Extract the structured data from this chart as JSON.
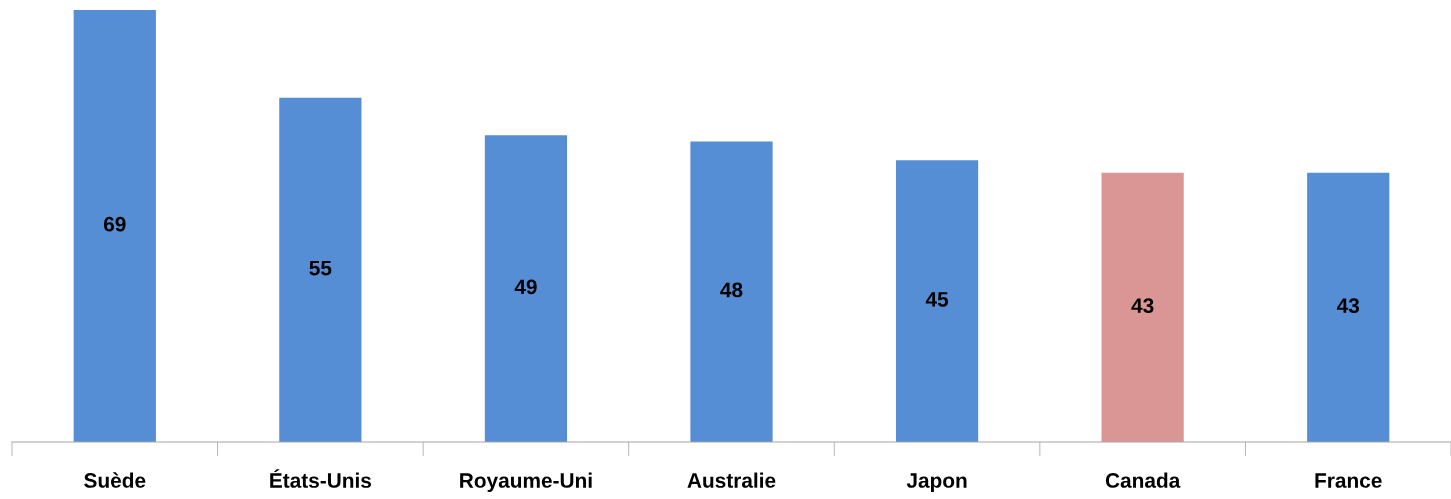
{
  "chart_data": {
    "type": "bar",
    "categories": [
      "Suède",
      "États-Unis",
      "Royaume-Uni",
      "Australie",
      "Japon",
      "Canada",
      "France"
    ],
    "values": [
      69,
      55,
      49,
      48,
      45,
      43,
      43
    ],
    "colors": [
      "#558ed5",
      "#558ed5",
      "#558ed5",
      "#558ed5",
      "#558ed5",
      "#d99694",
      "#558ed5"
    ],
    "data_labels": true,
    "grid": false,
    "legend": false
  }
}
